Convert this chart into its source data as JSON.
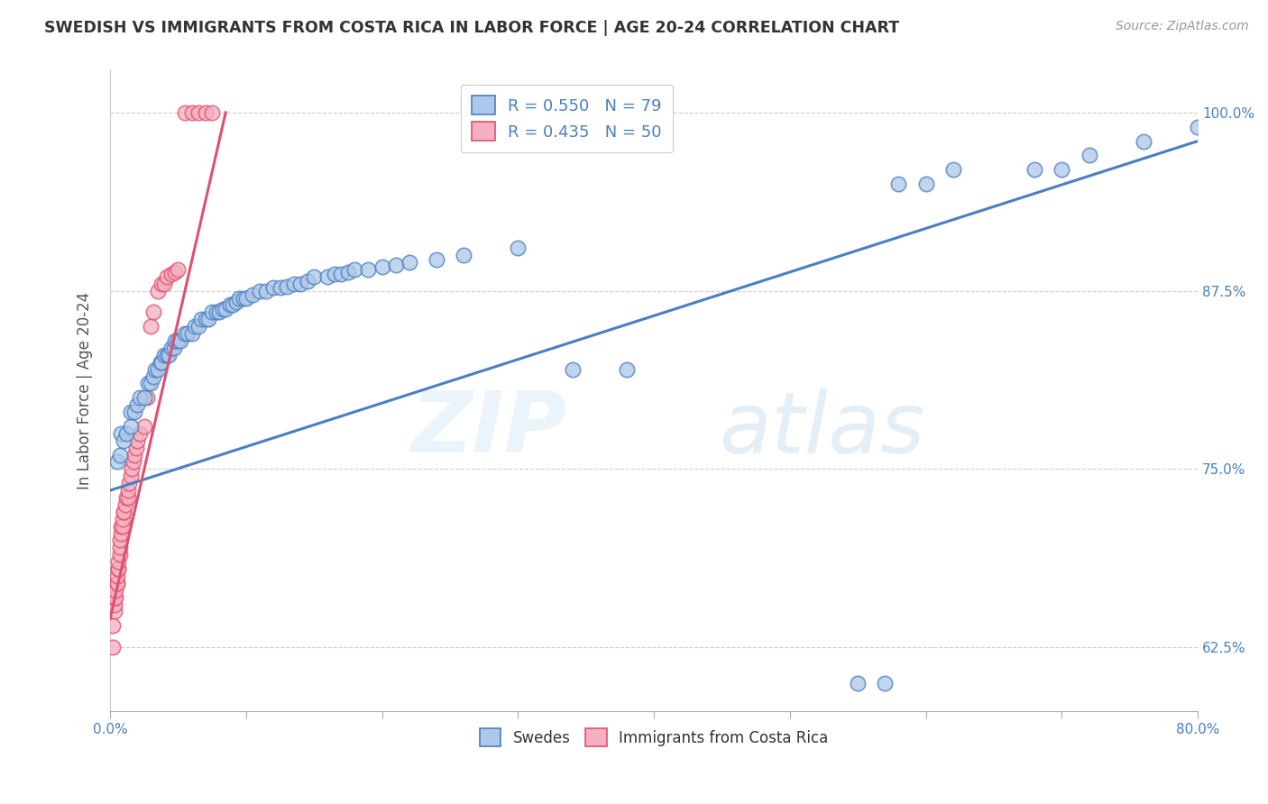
{
  "title": "SWEDISH VS IMMIGRANTS FROM COSTA RICA IN LABOR FORCE | AGE 20-24 CORRELATION CHART",
  "source": "Source: ZipAtlas.com",
  "ylabel": "In Labor Force | Age 20-24",
  "xlim": [
    0.0,
    0.8
  ],
  "ylim": [
    0.58,
    1.03
  ],
  "xticks": [
    0.0,
    0.1,
    0.2,
    0.3,
    0.4,
    0.5,
    0.6,
    0.7,
    0.8
  ],
  "xticklabels": [
    "0.0%",
    "",
    "",
    "",
    "",
    "",
    "",
    "",
    "80.0%"
  ],
  "ytick_positions": [
    0.625,
    0.75,
    0.875,
    1.0
  ],
  "ytick_labels": [
    "62.5%",
    "75.0%",
    "87.5%",
    "100.0%"
  ],
  "blue_R": 0.55,
  "blue_N": 79,
  "pink_R": 0.435,
  "pink_N": 50,
  "blue_color": "#adc8e8",
  "pink_color": "#f5afc0",
  "blue_line_color": "#4a7fc1",
  "pink_line_color": "#e0506e",
  "legend_blue_label": "Swedes",
  "legend_pink_label": "Immigrants from Costa Rica",
  "watermark_zip": "ZIP",
  "watermark_atlas": "atlas",
  "blue_scatter_x": [
    0.005,
    0.007,
    0.008,
    0.01,
    0.012,
    0.015,
    0.015,
    0.018,
    0.02,
    0.022,
    0.025,
    0.028,
    0.03,
    0.032,
    0.033,
    0.035,
    0.037,
    0.038,
    0.04,
    0.042,
    0.043,
    0.045,
    0.047,
    0.048,
    0.05,
    0.052,
    0.055,
    0.057,
    0.06,
    0.062,
    0.065,
    0.067,
    0.07,
    0.072,
    0.075,
    0.078,
    0.08,
    0.083,
    0.085,
    0.088,
    0.09,
    0.093,
    0.095,
    0.098,
    0.1,
    0.105,
    0.11,
    0.115,
    0.12,
    0.125,
    0.13,
    0.135,
    0.14,
    0.145,
    0.15,
    0.16,
    0.165,
    0.17,
    0.175,
    0.18,
    0.19,
    0.2,
    0.21,
    0.22,
    0.24,
    0.26,
    0.3,
    0.34,
    0.38,
    0.55,
    0.57,
    0.58,
    0.6,
    0.62,
    0.68,
    0.7,
    0.72,
    0.76,
    0.8
  ],
  "blue_scatter_y": [
    0.755,
    0.76,
    0.775,
    0.77,
    0.775,
    0.78,
    0.79,
    0.79,
    0.795,
    0.8,
    0.8,
    0.81,
    0.81,
    0.815,
    0.82,
    0.82,
    0.825,
    0.825,
    0.83,
    0.83,
    0.83,
    0.835,
    0.835,
    0.84,
    0.84,
    0.84,
    0.845,
    0.845,
    0.845,
    0.85,
    0.85,
    0.855,
    0.855,
    0.855,
    0.86,
    0.86,
    0.86,
    0.862,
    0.862,
    0.865,
    0.865,
    0.867,
    0.87,
    0.87,
    0.87,
    0.872,
    0.875,
    0.875,
    0.877,
    0.877,
    0.878,
    0.88,
    0.88,
    0.882,
    0.885,
    0.885,
    0.887,
    0.887,
    0.888,
    0.89,
    0.89,
    0.892,
    0.893,
    0.895,
    0.897,
    0.9,
    0.905,
    0.82,
    0.82,
    0.6,
    0.6,
    0.95,
    0.95,
    0.96,
    0.96,
    0.96,
    0.97,
    0.98,
    0.99
  ],
  "pink_scatter_x": [
    0.002,
    0.002,
    0.003,
    0.003,
    0.003,
    0.004,
    0.004,
    0.005,
    0.005,
    0.005,
    0.006,
    0.006,
    0.006,
    0.007,
    0.007,
    0.007,
    0.008,
    0.008,
    0.009,
    0.009,
    0.01,
    0.01,
    0.011,
    0.012,
    0.013,
    0.013,
    0.014,
    0.015,
    0.016,
    0.017,
    0.018,
    0.019,
    0.02,
    0.022,
    0.025,
    0.027,
    0.03,
    0.032,
    0.035,
    0.038,
    0.04,
    0.042,
    0.045,
    0.048,
    0.05,
    0.055,
    0.06,
    0.065,
    0.07,
    0.075
  ],
  "pink_scatter_y": [
    0.625,
    0.64,
    0.65,
    0.655,
    0.66,
    0.66,
    0.665,
    0.67,
    0.67,
    0.675,
    0.68,
    0.68,
    0.685,
    0.69,
    0.695,
    0.7,
    0.705,
    0.71,
    0.71,
    0.715,
    0.72,
    0.72,
    0.725,
    0.73,
    0.73,
    0.735,
    0.74,
    0.745,
    0.75,
    0.755,
    0.76,
    0.765,
    0.77,
    0.775,
    0.78,
    0.8,
    0.85,
    0.86,
    0.875,
    0.88,
    0.88,
    0.885,
    0.887,
    0.888,
    0.89,
    1.0,
    1.0,
    1.0,
    1.0,
    1.0
  ],
  "blue_trendline_x": [
    0.0,
    0.8
  ],
  "blue_trendline_y": [
    0.735,
    0.98
  ],
  "pink_trendline_x": [
    0.0,
    0.085
  ],
  "pink_trendline_y": [
    0.645,
    1.0
  ]
}
